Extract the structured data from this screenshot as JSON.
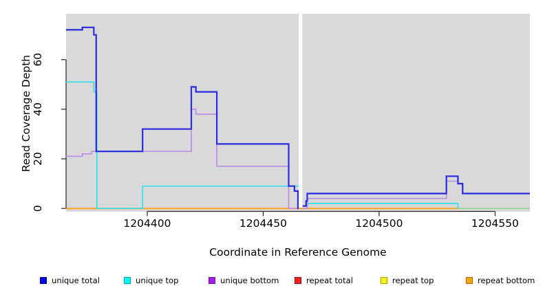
{
  "figure": {
    "background": "#ffffff",
    "plot_background": "#d9d9d9",
    "axis_color": "#222222",
    "text_color": "#000000",
    "gap_band_color": "#ffffff"
  },
  "axes": {
    "y_title": "Read Coverage Depth",
    "x_title": "Coordinate in Reference Genome",
    "y_ticks": [
      0,
      20,
      40,
      60
    ],
    "x_ticks": [
      1204400,
      1204450,
      1204500,
      1204550
    ]
  },
  "chart_data": {
    "type": "line",
    "subtype": "step",
    "title": "",
    "xlabel": "Coordinate in Reference Genome",
    "ylabel": "Read Coverage Depth",
    "x_range": [
      1204365,
      1204565
    ],
    "y_range": [
      -1.2,
      78.5
    ],
    "x_tick_values": [
      1204400,
      1204450,
      1204500,
      1204550
    ],
    "y_tick_values": [
      0,
      20,
      40,
      60
    ],
    "grid": false,
    "legend_position": "bottom",
    "gap_region": {
      "x_from": 1204465.3,
      "x_to": 1204466.9,
      "note": "white vertical band, no data"
    },
    "draw_order": [
      "repeat total",
      "repeat top",
      "zero baseline right",
      "repeat bottom",
      "unique top",
      "unique bottom",
      "unique total"
    ],
    "series": [
      {
        "name": "unique total",
        "in_legend": true,
        "color": "#2a2ae0",
        "width": 2.2,
        "segments": [
          {
            "steps": [
              [
                1204365,
                72
              ],
              [
                1204372,
                73
              ],
              [
                1204377,
                70
              ],
              [
                1204378,
                23
              ],
              [
                1204398,
                32
              ],
              [
                1204419,
                49
              ],
              [
                1204421,
                47
              ],
              [
                1204430,
                26
              ],
              [
                1204461,
                9
              ],
              [
                1204463.5,
                7
              ],
              [
                1204465,
                0
              ]
            ],
            "end": 1204465.3
          },
          {
            "steps": [
              [
                1204467,
                1
              ],
              [
                1204468.5,
                3
              ],
              [
                1204469,
                6
              ],
              [
                1204529,
                13
              ],
              [
                1204534,
                10
              ],
              [
                1204536,
                6
              ]
            ],
            "end": 1204565
          }
        ]
      },
      {
        "name": "unique top",
        "in_legend": true,
        "color": "#30dfe8",
        "width": 1.7,
        "segments": [
          {
            "steps": [
              [
                1204365,
                51
              ],
              [
                1204377,
                47
              ],
              [
                1204378.3,
                0
              ],
              [
                1204398,
                9
              ]
            ],
            "end": 1204465.3
          },
          {
            "steps": [
              [
                1204467,
                1
              ],
              [
                1204469,
                2
              ],
              [
                1204534,
                0
              ]
            ],
            "end": 1204534.3
          }
        ]
      },
      {
        "name": "unique bottom",
        "in_legend": true,
        "color": "#bc8ee6",
        "width": 1.7,
        "segments": [
          {
            "steps": [
              [
                1204365,
                21
              ],
              [
                1204372,
                22
              ],
              [
                1204376,
                23
              ],
              [
                1204419,
                40
              ],
              [
                1204421,
                38
              ],
              [
                1204430,
                17
              ],
              [
                1204461,
                0
              ]
            ],
            "end": 1204465.3
          },
          {
            "steps": [
              [
                1204467,
                0
              ],
              [
                1204469,
                4
              ],
              [
                1204529,
                11
              ],
              [
                1204534,
                10
              ],
              [
                1204536,
                6
              ]
            ],
            "end": 1204565
          }
        ]
      },
      {
        "name": "repeat total",
        "in_legend": true,
        "color": "#dd2222",
        "width": 1.4,
        "segments": [
          {
            "steps": [
              [
                1204365,
                0
              ]
            ],
            "end": 1204534
          }
        ]
      },
      {
        "name": "repeat top",
        "in_legend": true,
        "color": "#f0f000",
        "width": 1.4,
        "segments": [
          {
            "steps": [
              [
                1204365,
                0
              ]
            ],
            "end": 1204534
          }
        ]
      },
      {
        "name": "repeat bottom",
        "in_legend": true,
        "color": "#ffa11e",
        "width": 2,
        "segments": [
          {
            "steps": [
              [
                1204365,
                0
              ]
            ],
            "end": 1204534
          }
        ]
      },
      {
        "name": "zero baseline right",
        "in_legend": false,
        "color": "#8fd48f",
        "width": 1.6,
        "segments": [
          {
            "steps": [
              [
                1204534,
                0
              ]
            ],
            "end": 1204565
          }
        ]
      }
    ]
  },
  "legend": {
    "items": [
      {
        "label": "unique total",
        "fill": "#0000f5",
        "border": "#00006a"
      },
      {
        "label": "unique top",
        "fill": "#00ffff",
        "border": "#00a0b0"
      },
      {
        "label": "unique bottom",
        "fill": "#a21fec",
        "border": "#6d13a6"
      },
      {
        "label": "repeat total",
        "fill": "#ee2222",
        "border": "#900000"
      },
      {
        "label": "repeat top",
        "fill": "#ffff00",
        "border": "#a0a000"
      },
      {
        "label": "repeat bottom",
        "fill": "#ffa500",
        "border": "#b06f00"
      }
    ]
  }
}
